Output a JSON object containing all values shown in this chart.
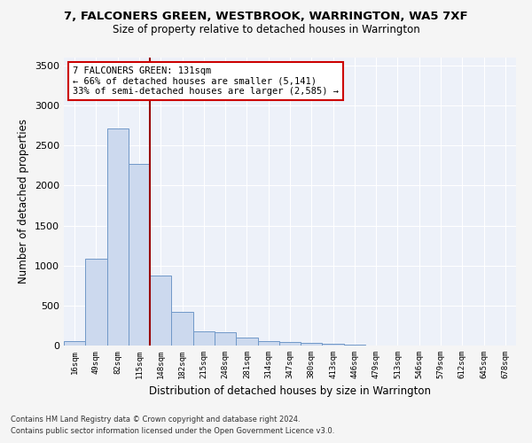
{
  "title": "7, FALCONERS GREEN, WESTBROOK, WARRINGTON, WA5 7XF",
  "subtitle": "Size of property relative to detached houses in Warrington",
  "xlabel": "Distribution of detached houses by size in Warrington",
  "ylabel": "Number of detached properties",
  "bar_color": "#ccd9ee",
  "bar_edge_color": "#7098c8",
  "background_color": "#edf1f9",
  "grid_color": "#ffffff",
  "categories": [
    "16sqm",
    "49sqm",
    "82sqm",
    "115sqm",
    "148sqm",
    "182sqm",
    "215sqm",
    "248sqm",
    "281sqm",
    "314sqm",
    "347sqm",
    "380sqm",
    "413sqm",
    "446sqm",
    "479sqm",
    "513sqm",
    "546sqm",
    "579sqm",
    "612sqm",
    "645sqm",
    "678sqm"
  ],
  "values": [
    50,
    1090,
    2710,
    2270,
    880,
    420,
    175,
    170,
    95,
    60,
    45,
    30,
    20,
    10,
    5,
    3,
    2,
    2,
    1,
    1,
    1
  ],
  "vline_pos": 3.5,
  "vline_color": "#990000",
  "annotation_title": "7 FALCONERS GREEN: 131sqm",
  "annotation_line1": "← 66% of detached houses are smaller (5,141)",
  "annotation_line2": "33% of semi-detached houses are larger (2,585) →",
  "annotation_box_color": "#ffffff",
  "annotation_box_edge": "#cc0000",
  "ylim": [
    0,
    3600
  ],
  "yticks": [
    0,
    500,
    1000,
    1500,
    2000,
    2500,
    3000,
    3500
  ],
  "footnote1": "Contains HM Land Registry data © Crown copyright and database right 2024.",
  "footnote2": "Contains public sector information licensed under the Open Government Licence v3.0."
}
